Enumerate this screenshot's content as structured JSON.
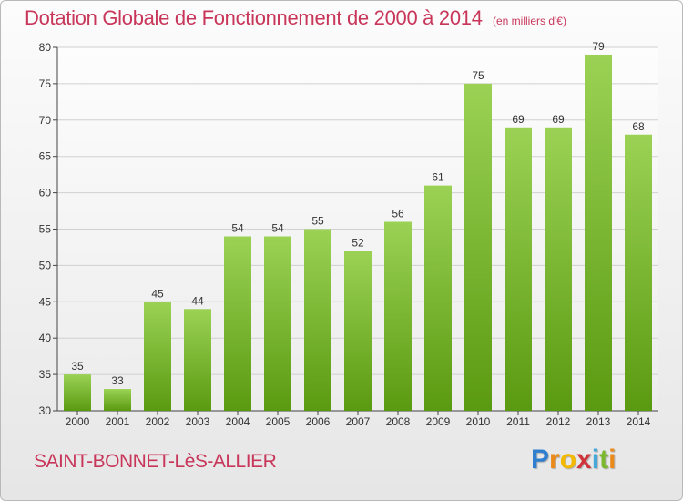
{
  "header": {
    "title": "Dotation Globale de Fonctionnement de 2000 à 2014",
    "subtitle": "(en milliers d'€)"
  },
  "footer": {
    "commune": "SAINT-BONNET-LèS-ALLIER",
    "logo_letters": [
      "P",
      "r",
      "o",
      "x",
      "i",
      "t",
      "i"
    ],
    "logo_colors": [
      "#2f7fd0",
      "#e98a1a",
      "#f5b800",
      "#d0343a",
      "#46a7d9",
      "#7cb82f",
      "#e98a1a"
    ]
  },
  "colors": {
    "title": "#c8365a",
    "bar_top": "#9bd255",
    "bar_bottom": "#5a9a10",
    "grid": "#d0d0d0"
  },
  "chart_data": {
    "type": "bar",
    "categories": [
      "2000",
      "2001",
      "2002",
      "2003",
      "2004",
      "2005",
      "2006",
      "2007",
      "2008",
      "2009",
      "2010",
      "2011",
      "2012",
      "2013",
      "2014"
    ],
    "values": [
      35,
      33,
      45,
      44,
      54,
      54,
      55,
      52,
      56,
      61,
      75,
      69,
      69,
      79,
      68
    ],
    "ylim": [
      30,
      80
    ],
    "yticks": [
      30,
      35,
      40,
      45,
      50,
      55,
      60,
      65,
      70,
      75,
      80
    ],
    "grid": true,
    "data_labels": true
  }
}
